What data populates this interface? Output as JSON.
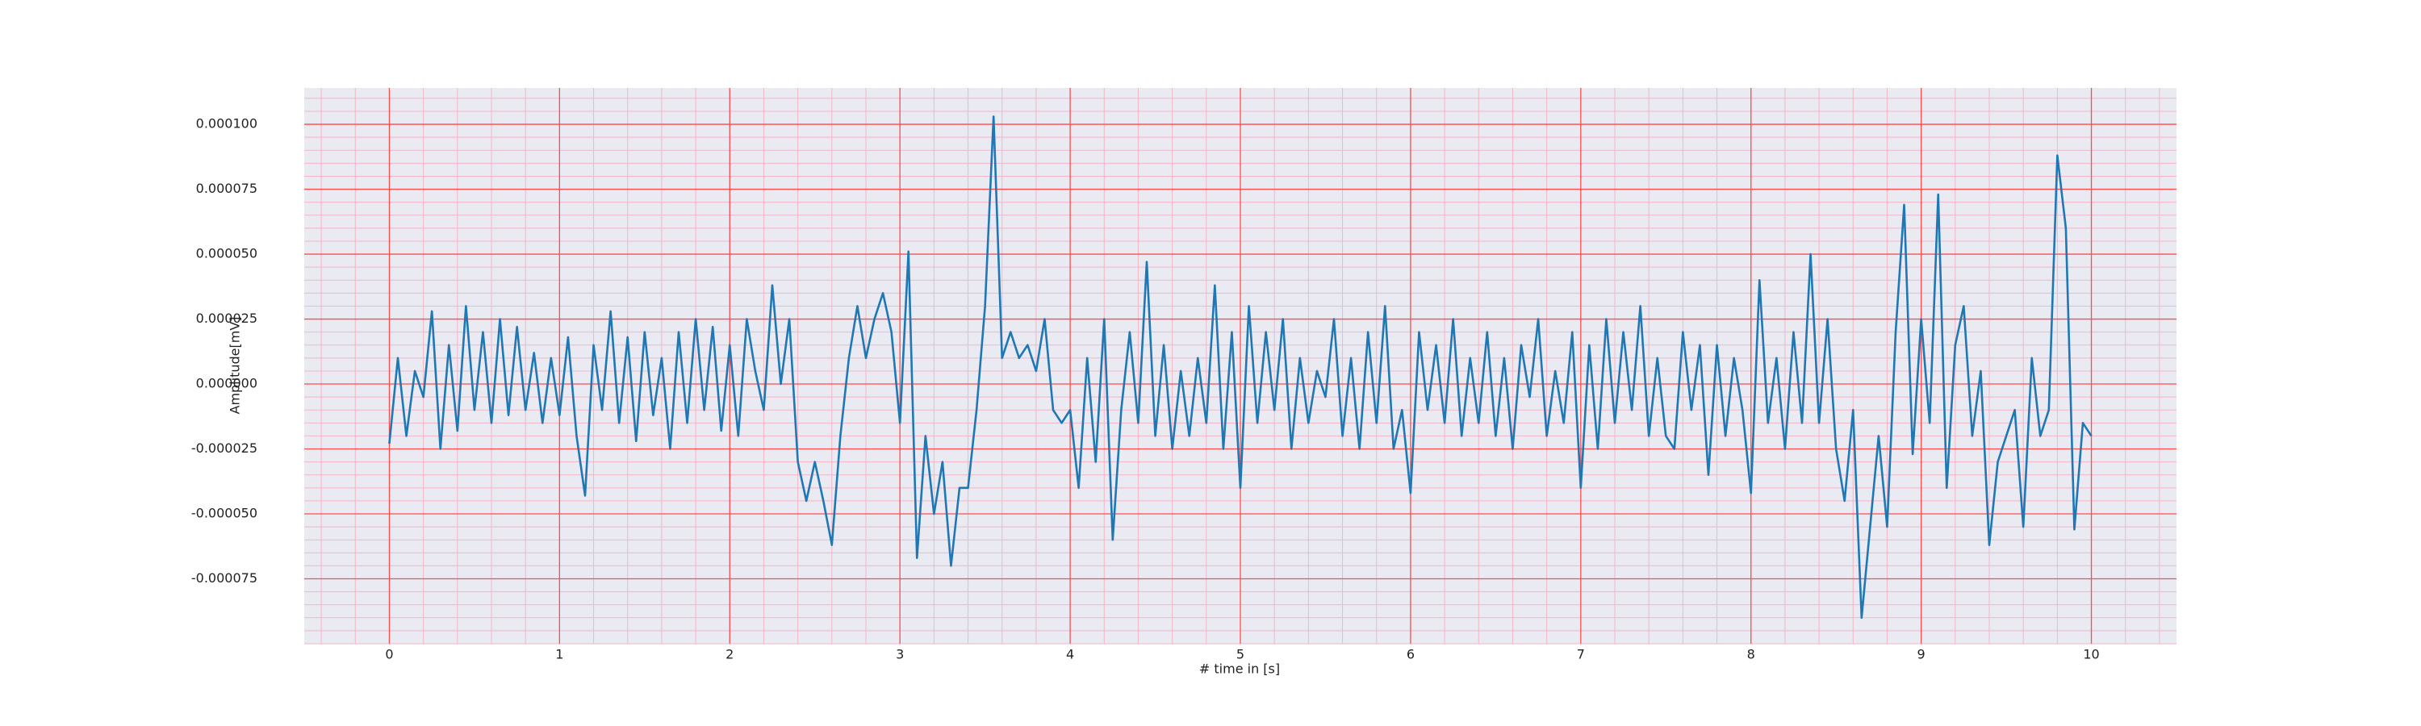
{
  "chart_data": {
    "type": "line",
    "xlabel": "# time in [s]",
    "ylabel": "Amplitude[mV]",
    "xlim": [
      -0.5,
      10.5
    ],
    "xticks": [
      0,
      1,
      2,
      3,
      4,
      5,
      6,
      7,
      8,
      9,
      10
    ],
    "ylim": [
      -0.0001,
      0.000114
    ],
    "yticks": [
      {
        "value": -7.5e-05,
        "label": "-0.000075"
      },
      {
        "value": -5e-05,
        "label": "-0.000050"
      },
      {
        "value": -2.5e-05,
        "label": "-0.000025"
      },
      {
        "value": 0,
        "label": "0.000000"
      },
      {
        "value": 2.5e-05,
        "label": "0.000025"
      },
      {
        "value": 5e-05,
        "label": "0.000050"
      },
      {
        "value": 7.5e-05,
        "label": "0.000075"
      },
      {
        "value": 0.0001,
        "label": "0.000100"
      }
    ],
    "grid": true,
    "minor_grid": true,
    "grid_color": "#ff4d4d",
    "minor_grid_color": "#f5b5c5",
    "background": "#eaeaf2",
    "x": [
      0,
      0.05,
      0.1,
      0.15,
      0.2,
      0.25,
      0.3,
      0.35,
      0.4,
      0.45,
      0.5,
      0.55,
      0.6,
      0.65,
      0.7,
      0.75,
      0.8,
      0.85,
      0.9,
      0.95,
      1,
      1.05,
      1.1,
      1.15,
      1.2,
      1.25,
      1.3,
      1.35,
      1.4,
      1.45,
      1.5,
      1.55,
      1.6,
      1.65,
      1.7,
      1.75,
      1.8,
      1.85,
      1.9,
      1.95,
      2,
      2.05,
      2.1,
      2.15,
      2.2,
      2.25,
      2.3,
      2.35,
      2.4,
      2.45,
      2.5,
      2.55,
      2.6,
      2.65,
      2.7,
      2.75,
      2.8,
      2.85,
      2.9,
      2.95,
      3,
      3.05,
      3.1,
      3.15,
      3.2,
      3.25,
      3.3,
      3.35,
      3.4,
      3.45,
      3.5,
      3.55,
      3.6,
      3.65,
      3.7,
      3.75,
      3.8,
      3.85,
      3.9,
      3.95,
      4,
      4.05,
      4.1,
      4.15,
      4.2,
      4.25,
      4.3,
      4.35,
      4.4,
      4.45,
      4.5,
      4.55,
      4.6,
      4.65,
      4.7,
      4.75,
      4.8,
      4.85,
      4.9,
      4.95,
      5,
      5.05,
      5.1,
      5.15,
      5.2,
      5.25,
      5.3,
      5.35,
      5.4,
      5.45,
      5.5,
      5.55,
      5.6,
      5.65,
      5.7,
      5.75,
      5.8,
      5.85,
      5.9,
      5.95,
      6,
      6.05,
      6.1,
      6.15,
      6.2,
      6.25,
      6.3,
      6.35,
      6.4,
      6.45,
      6.5,
      6.55,
      6.6,
      6.65,
      6.7,
      6.75,
      6.8,
      6.85,
      6.9,
      6.95,
      7,
      7.05,
      7.1,
      7.15,
      7.2,
      7.25,
      7.3,
      7.35,
      7.4,
      7.45,
      7.5,
      7.55,
      7.6,
      7.65,
      7.7,
      7.75,
      7.8,
      7.85,
      7.9,
      7.95,
      8,
      8.05,
      8.1,
      8.15,
      8.2,
      8.25,
      8.3,
      8.35,
      8.4,
      8.45,
      8.5,
      8.55,
      8.6,
      8.65,
      8.7,
      8.75,
      8.8,
      8.85,
      8.9,
      8.95,
      9,
      9.05,
      9.1,
      9.15,
      9.2,
      9.25,
      9.3,
      9.35,
      9.4,
      9.45,
      9.5,
      9.55,
      9.6,
      9.65,
      9.7,
      9.75,
      9.8,
      9.85,
      9.9,
      9.95,
      10
    ],
    "series": [
      {
        "color": "#1f77b4",
        "values": [
          -2.3e-05,
          1e-05,
          -2e-05,
          5e-06,
          -5e-06,
          2.8e-05,
          -2.5e-05,
          1.5e-05,
          -1.8e-05,
          3e-05,
          -1e-05,
          2e-05,
          -1.5e-05,
          2.5e-05,
          -1.2e-05,
          2.2e-05,
          -1e-05,
          1.2e-05,
          -1.5e-05,
          1e-05,
          -1.2e-05,
          1.8e-05,
          -2e-05,
          -4.3e-05,
          1.5e-05,
          -1e-05,
          2.8e-05,
          -1.5e-05,
          1.8e-05,
          -2.2e-05,
          2e-05,
          -1.2e-05,
          1e-05,
          -2.5e-05,
          2e-05,
          -1.5e-05,
          2.5e-05,
          -1e-05,
          2.2e-05,
          -1.8e-05,
          1.5e-05,
          -2e-05,
          2.5e-05,
          5e-06,
          -1e-05,
          3.8e-05,
          0,
          2.5e-05,
          -3e-05,
          -4.5e-05,
          -3e-05,
          -4.5e-05,
          -6.2e-05,
          -2e-05,
          1e-05,
          3e-05,
          1e-05,
          2.5e-05,
          3.5e-05,
          2e-05,
          -1.5e-05,
          5.1e-05,
          -6.7e-05,
          -2e-05,
          -5e-05,
          -3e-05,
          -7e-05,
          -4e-05,
          -4e-05,
          -1e-05,
          3e-05,
          0.000103,
          1e-05,
          2e-05,
          1e-05,
          1.5e-05,
          5e-06,
          2.5e-05,
          -1e-05,
          -1.5e-05,
          -1e-05,
          -4e-05,
          1e-05,
          -3e-05,
          2.5e-05,
          -6e-05,
          -1e-05,
          2e-05,
          -1.5e-05,
          4.7e-05,
          -2e-05,
          1.5e-05,
          -2.5e-05,
          5e-06,
          -2e-05,
          1e-05,
          -1.5e-05,
          3.8e-05,
          -2.5e-05,
          2e-05,
          -4e-05,
          3e-05,
          -1.5e-05,
          2e-05,
          -1e-05,
          2.5e-05,
          -2.5e-05,
          1e-05,
          -1.5e-05,
          5e-06,
          -5e-06,
          2.5e-05,
          -2e-05,
          1e-05,
          -2.5e-05,
          2e-05,
          -1.5e-05,
          3e-05,
          -2.5e-05,
          -1e-05,
          -4.2e-05,
          2e-05,
          -1e-05,
          1.5e-05,
          -1.5e-05,
          2.5e-05,
          -2e-05,
          1e-05,
          -1.5e-05,
          2e-05,
          -2e-05,
          1e-05,
          -2.5e-05,
          1.5e-05,
          -5e-06,
          2.5e-05,
          -2e-05,
          5e-06,
          -1.5e-05,
          2e-05,
          -4e-05,
          1.5e-05,
          -2.5e-05,
          2.5e-05,
          -1.5e-05,
          2e-05,
          -1e-05,
          3e-05,
          -2e-05,
          1e-05,
          -2e-05,
          -2.5e-05,
          2e-05,
          -1e-05,
          1.5e-05,
          -3.5e-05,
          1.5e-05,
          -2e-05,
          1e-05,
          -1e-05,
          -4.2e-05,
          4e-05,
          -1.5e-05,
          1e-05,
          -2.5e-05,
          2e-05,
          -1.5e-05,
          5e-05,
          -1.5e-05,
          2.5e-05,
          -2.5e-05,
          -4.5e-05,
          -1e-05,
          -9e-05,
          -5.5e-05,
          -2e-05,
          -5.5e-05,
          2e-05,
          6.9e-05,
          -2.7e-05,
          2.5e-05,
          -1.5e-05,
          7.3e-05,
          -4e-05,
          1.5e-05,
          3e-05,
          -2e-05,
          5e-06,
          -6.2e-05,
          -3e-05,
          -2e-05,
          -1e-05,
          -5.5e-05,
          1e-05,
          -2e-05,
          -1e-05,
          8.8e-05,
          6e-05,
          -5.6e-05,
          -1.5e-05,
          -2e-05
        ]
      }
    ]
  }
}
